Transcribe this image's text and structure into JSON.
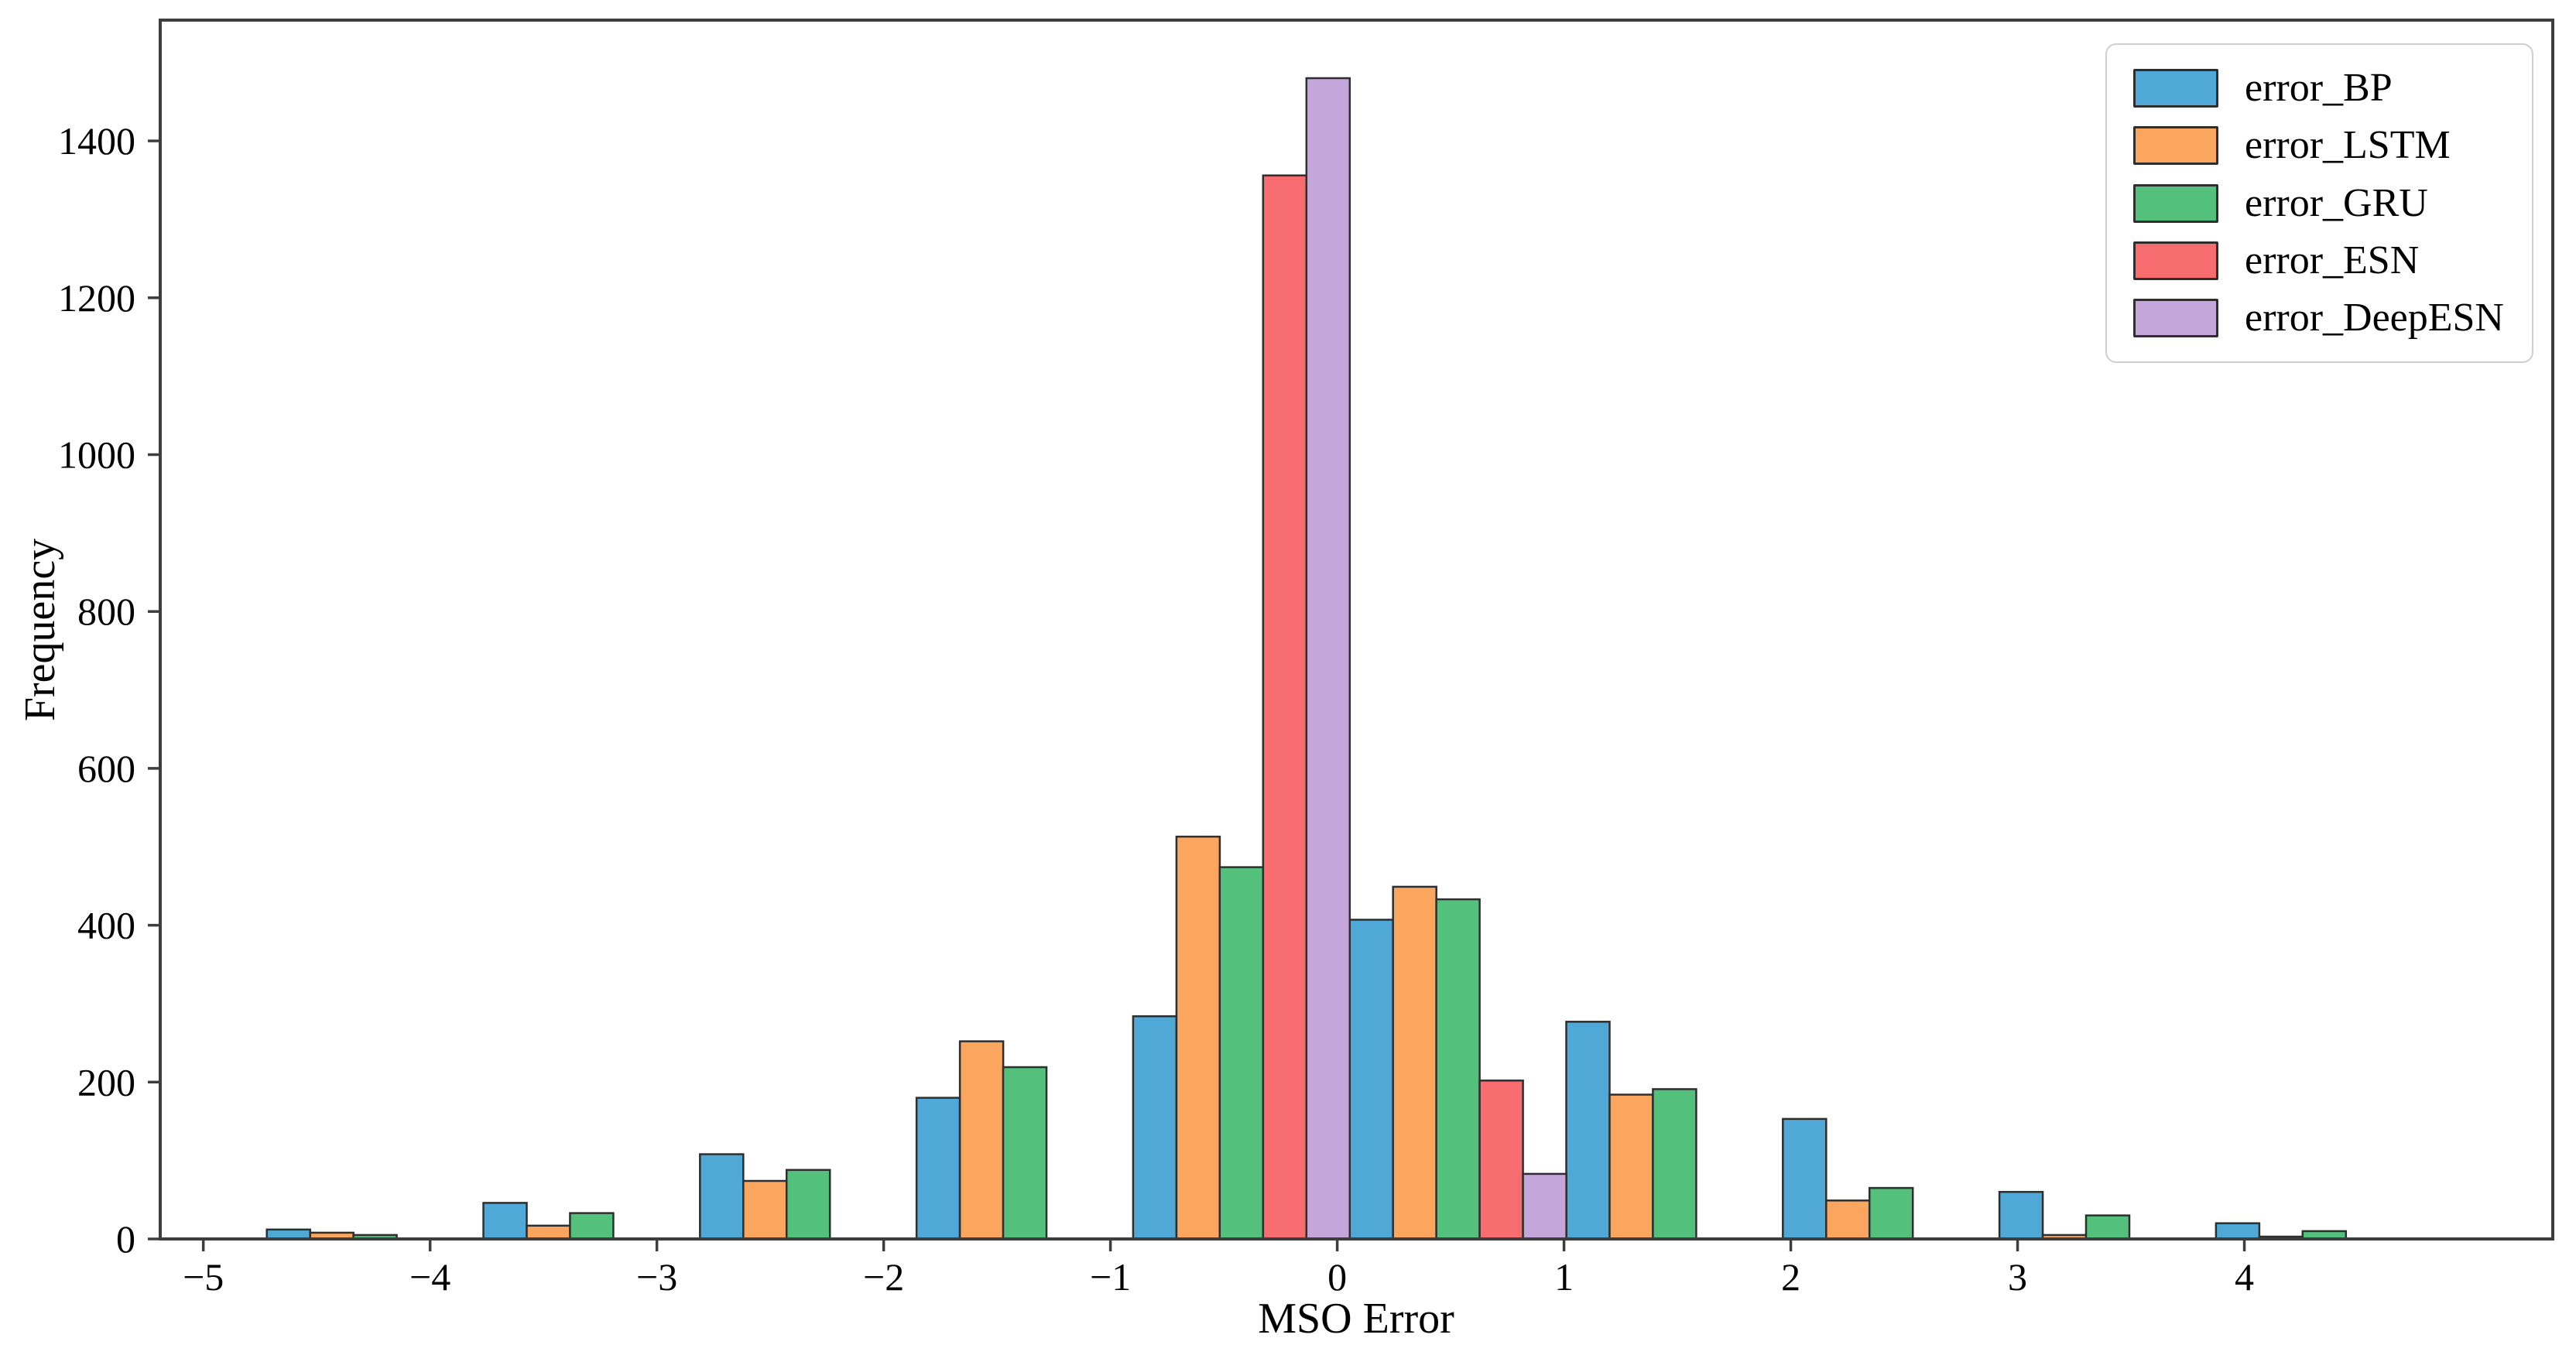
{
  "chart_data": {
    "type": "bar",
    "subtype": "grouped_histogram",
    "title": "",
    "xlabel": "MSO Error",
    "ylabel": "Frequency",
    "grid": false,
    "legend_position": "upper right",
    "xlim": [
      -5.19,
      5.36
    ],
    "ylim": [
      0,
      1554
    ],
    "x_ticks": [
      -5,
      -4,
      -3,
      -2,
      -1,
      0,
      1,
      2,
      3,
      4
    ],
    "y_ticks": [
      0,
      200,
      400,
      600,
      800,
      1000,
      1200,
      1400
    ],
    "bin_start": -4.72,
    "bin_width": 0.955,
    "n_bins": 10,
    "axis_color": "#3d3d3d",
    "bar_edge_color": "#2e2e2e",
    "series": [
      {
        "name": "error_BP",
        "color": "#4FA8D5",
        "values": [
          12,
          46,
          108,
          180,
          284,
          407,
          277,
          153,
          60,
          20
        ]
      },
      {
        "name": "error_LSTM",
        "color": "#FAA65F",
        "values": [
          8,
          17,
          74,
          252,
          513,
          449,
          184,
          49,
          5,
          3
        ]
      },
      {
        "name": "error_GRU",
        "color": "#53C17C",
        "values": [
          5,
          33,
          88,
          219,
          474,
          433,
          191,
          65,
          30,
          10
        ]
      },
      {
        "name": "error_ESN",
        "color": "#F76D6F",
        "values": [
          0,
          0,
          0,
          0,
          1356,
          202,
          0,
          0,
          0,
          0
        ]
      },
      {
        "name": "error_DeepESN",
        "color": "#C5A6DB",
        "values": [
          0,
          0,
          0,
          0,
          1480,
          83,
          0,
          0,
          0,
          0
        ]
      }
    ]
  }
}
